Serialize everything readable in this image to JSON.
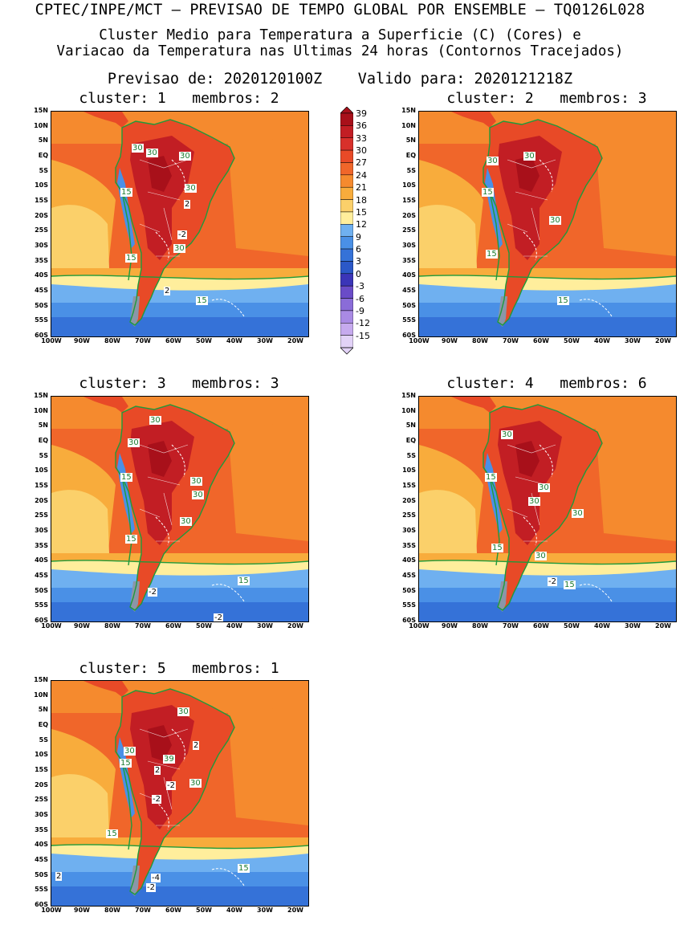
{
  "header": {
    "line1": "CPTEC/INPE/MCT – PREVISAO DE TEMPO GLOBAL POR ENSEMBLE – TQ0126L028",
    "line2": "Cluster Medio para Temperatura a Superficie (C) (Cores) e",
    "line3": "Variacao da Temperatura nas Ultimas 24 horas (Contornos Tracejados)",
    "line4": "Previsao de: 2020120100Z    Valido para: 2020121218Z"
  },
  "axes": {
    "lat_labels": [
      "15N",
      "10N",
      "5N",
      "EQ",
      "5S",
      "10S",
      "15S",
      "20S",
      "25S",
      "30S",
      "35S",
      "40S",
      "45S",
      "50S",
      "55S",
      "60S"
    ],
    "lon_labels": [
      "100W",
      "90W",
      "80W",
      "70W",
      "60W",
      "50W",
      "40W",
      "30W",
      "20W"
    ]
  },
  "colorbar": {
    "levels": [
      "39",
      "36",
      "33",
      "30",
      "27",
      "24",
      "21",
      "18",
      "15",
      "12",
      "9",
      "6",
      "3",
      "0",
      "-3",
      "-6",
      "-9",
      "-12",
      "-15"
    ],
    "colors": [
      "#a8101a",
      "#c21e24",
      "#d8302b",
      "#e84a27",
      "#f0662a",
      "#f58a2e",
      "#f8ac3c",
      "#fbd06a",
      "#ffee9c",
      "#6fb0f0",
      "#4a90e6",
      "#3572d8",
      "#2b58c8",
      "#3b35b8",
      "#6a4cc8",
      "#8a6cd8",
      "#a98ae4",
      "#c6aaee",
      "#e2d2f7"
    ]
  },
  "panels": [
    {
      "id": "c1",
      "title": "cluster: 1   membros: 2",
      "labels": [
        {
          "t": "30",
          "k": "s",
          "x": 100,
          "y": 40
        },
        {
          "t": "30",
          "k": "s",
          "x": 118,
          "y": 46
        },
        {
          "t": "30",
          "k": "s",
          "x": 159,
          "y": 50
        },
        {
          "t": "15",
          "k": "s",
          "x": 86,
          "y": 95
        },
        {
          "t": "30",
          "k": "s",
          "x": 166,
          "y": 90
        },
        {
          "t": "2",
          "k": "w",
          "x": 165,
          "y": 110
        },
        {
          "t": "-2",
          "k": "w",
          "x": 157,
          "y": 148
        },
        {
          "t": "30",
          "k": "s",
          "x": 152,
          "y": 165
        },
        {
          "t": "15",
          "k": "s",
          "x": 92,
          "y": 177
        },
        {
          "t": "2",
          "k": "w",
          "x": 140,
          "y": 218
        },
        {
          "t": "15",
          "k": "s",
          "x": 180,
          "y": 230
        }
      ]
    },
    {
      "id": "c2",
      "title": "cluster: 2   membros: 3",
      "labels": [
        {
          "t": "30",
          "k": "s",
          "x": 130,
          "y": 50
        },
        {
          "t": "30",
          "k": "s",
          "x": 84,
          "y": 56
        },
        {
          "t": "15",
          "k": "s",
          "x": 78,
          "y": 95
        },
        {
          "t": "30",
          "k": "s",
          "x": 162,
          "y": 130
        },
        {
          "t": "15",
          "k": "s",
          "x": 83,
          "y": 172
        },
        {
          "t": "15",
          "k": "s",
          "x": 172,
          "y": 230
        }
      ]
    },
    {
      "id": "c3",
      "title": "cluster: 3   membros: 3",
      "labels": [
        {
          "t": "30",
          "k": "s",
          "x": 122,
          "y": 24
        },
        {
          "t": "30",
          "k": "s",
          "x": 95,
          "y": 52
        },
        {
          "t": "15",
          "k": "s",
          "x": 86,
          "y": 95
        },
        {
          "t": "30",
          "k": "s",
          "x": 173,
          "y": 100
        },
        {
          "t": "30",
          "k": "s",
          "x": 175,
          "y": 117
        },
        {
          "t": "30",
          "k": "s",
          "x": 160,
          "y": 150
        },
        {
          "t": "15",
          "k": "s",
          "x": 92,
          "y": 172
        },
        {
          "t": "15",
          "k": "s",
          "x": 232,
          "y": 224
        },
        {
          "t": "-2",
          "k": "w",
          "x": 120,
          "y": 238
        },
        {
          "t": "-2",
          "k": "w",
          "x": 202,
          "y": 270
        }
      ]
    },
    {
      "id": "c4",
      "title": "cluster: 4   membros: 6",
      "labels": [
        {
          "t": "30",
          "k": "s",
          "x": 102,
          "y": 42
        },
        {
          "t": "15",
          "k": "s",
          "x": 82,
          "y": 95
        },
        {
          "t": "30",
          "k": "s",
          "x": 148,
          "y": 108
        },
        {
          "t": "30",
          "k": "s",
          "x": 136,
          "y": 125
        },
        {
          "t": "30",
          "k": "s",
          "x": 190,
          "y": 140
        },
        {
          "t": "15",
          "k": "s",
          "x": 90,
          "y": 183
        },
        {
          "t": "30",
          "k": "s",
          "x": 144,
          "y": 193
        },
        {
          "t": "-2",
          "k": "w",
          "x": 160,
          "y": 225
        },
        {
          "t": "15",
          "k": "s",
          "x": 180,
          "y": 229
        }
      ]
    },
    {
      "id": "c5",
      "title": "cluster: 5   membros: 1",
      "labels": [
        {
          "t": "30",
          "k": "s",
          "x": 157,
          "y": 33
        },
        {
          "t": "2",
          "k": "w",
          "x": 176,
          "y": 75
        },
        {
          "t": "30",
          "k": "s",
          "x": 90,
          "y": 82
        },
        {
          "t": "39",
          "k": "s",
          "x": 139,
          "y": 92
        },
        {
          "t": "15",
          "k": "s",
          "x": 85,
          "y": 97
        },
        {
          "t": "2",
          "k": "w",
          "x": 128,
          "y": 106
        },
        {
          "t": "-2",
          "k": "w",
          "x": 143,
          "y": 125
        },
        {
          "t": "30",
          "k": "s",
          "x": 172,
          "y": 122
        },
        {
          "t": "-2",
          "k": "w",
          "x": 125,
          "y": 142
        },
        {
          "t": "15",
          "k": "s",
          "x": 68,
          "y": 185
        },
        {
          "t": "2",
          "k": "w",
          "x": 5,
          "y": 238
        },
        {
          "t": "15",
          "k": "s",
          "x": 232,
          "y": 228
        },
        {
          "t": "-4",
          "k": "w",
          "x": 124,
          "y": 240
        },
        {
          "t": "-2",
          "k": "w",
          "x": 118,
          "y": 252
        }
      ]
    }
  ]
}
